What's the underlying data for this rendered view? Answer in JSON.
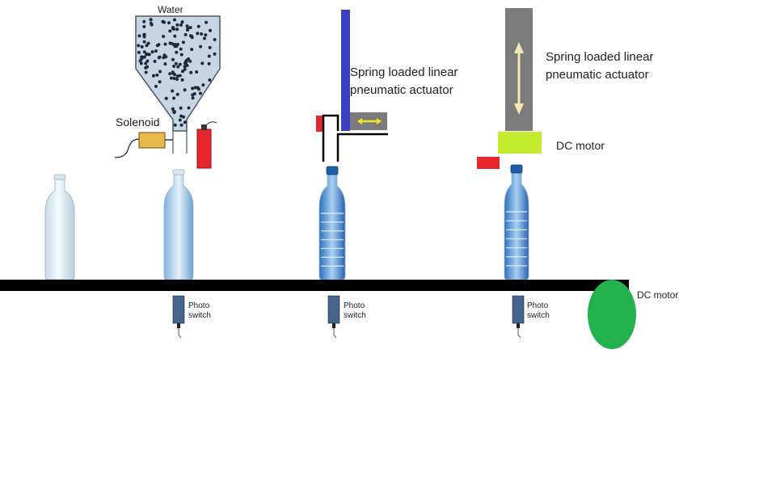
{
  "labels": {
    "water": "Water",
    "solenoid": "Solenoid",
    "actuator1_line1": "Spring loaded linear",
    "actuator1_line2": "pneumatic actuator",
    "actuator2_line1": "Spring loaded linear",
    "actuator2_line2": "pneumatic actuator",
    "dc_motor_top": "DC motor",
    "dc_motor_conveyor": "DC motor",
    "photo_switch_1_line1": "Photo",
    "photo_switch_1_line2": "switch",
    "photo_switch_2_line1": "Photo",
    "photo_switch_2_line2": "switch",
    "photo_switch_3_line1": "Photo",
    "photo_switch_3_line2": "switch"
  },
  "colors": {
    "conveyor": "#000000",
    "hopper_fill": "#c7d5e4",
    "hopper_dots": "#1b2a3c",
    "solenoid_body": "#e8b84a",
    "red_sensor": "#e8262d",
    "actuator1_rod": "#3b3fc4",
    "actuator_body": "#7b7b7b",
    "arrow_yellow": "#f5e61c",
    "arrow_cream": "#f3e7b4",
    "dc_motor_top": "#c4ec2e",
    "dc_motor_conveyor": "#22b14c",
    "bottle_plastic": "#dbe8f0",
    "bottle_filled": "#4f8fd6",
    "cap_blue": "#1f5ea8",
    "photo_switch": "#44658c"
  }
}
